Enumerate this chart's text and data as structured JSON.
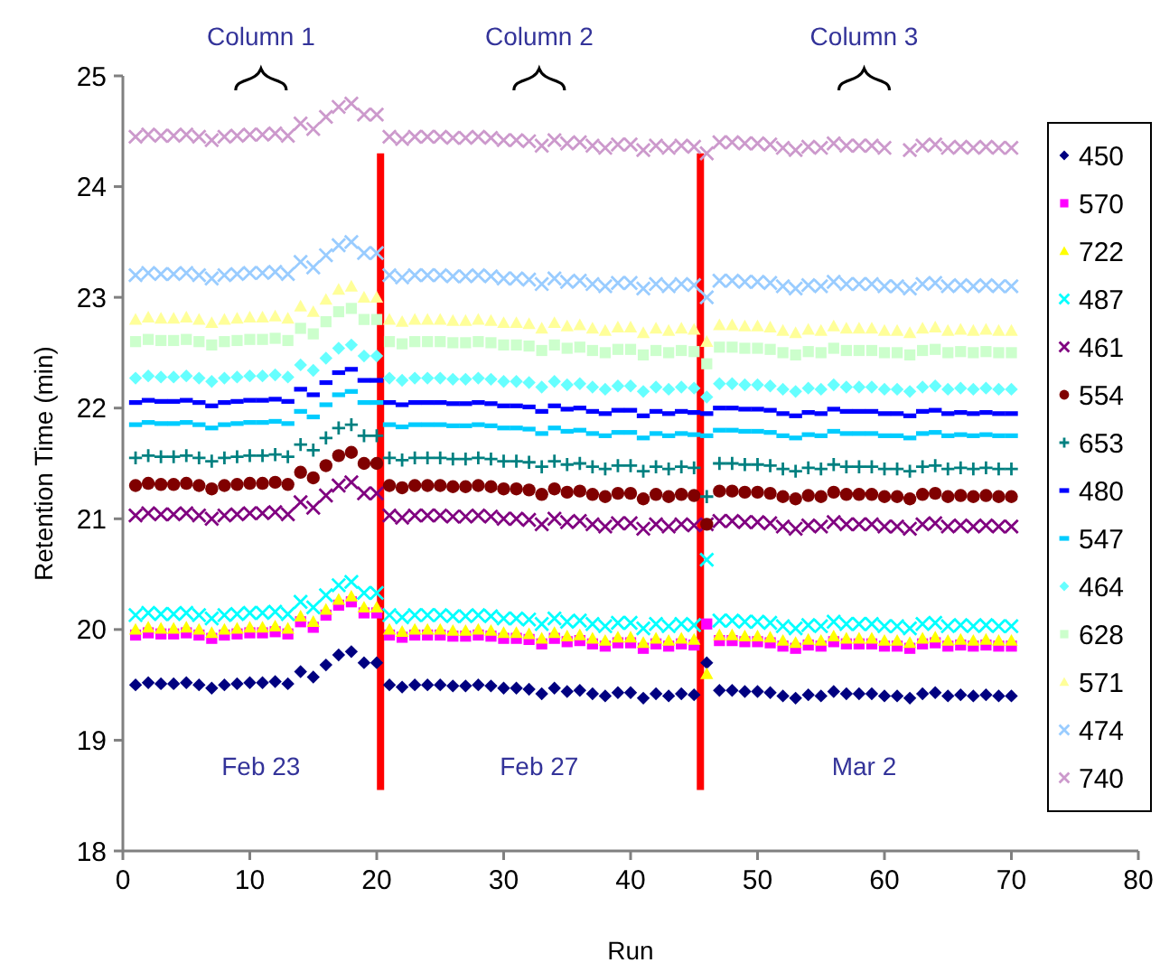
{
  "chart_data": {
    "type": "scatter",
    "xlabel": "Run",
    "ylabel": "Retention Time (min)",
    "x": [
      1,
      2,
      3,
      4,
      5,
      6,
      7,
      8,
      9,
      10,
      11,
      12,
      13,
      14,
      15,
      16,
      17,
      18,
      19,
      20,
      21,
      22,
      23,
      24,
      25,
      26,
      27,
      28,
      29,
      30,
      31,
      32,
      33,
      34,
      35,
      36,
      37,
      38,
      39,
      40,
      41,
      42,
      43,
      44,
      45,
      46,
      47,
      48,
      49,
      50,
      51,
      52,
      53,
      54,
      55,
      56,
      57,
      58,
      59,
      60,
      61,
      62,
      63,
      64,
      65,
      66,
      67,
      68,
      69,
      70
    ],
    "xlim": [
      0,
      80
    ],
    "xticks": [
      0,
      10,
      20,
      30,
      40,
      50,
      60,
      70,
      80
    ],
    "ylim": [
      18,
      25
    ],
    "yticks": [
      18,
      19,
      20,
      21,
      22,
      23,
      24,
      25
    ],
    "grid": false,
    "legend": "right",
    "ref_lines": [
      {
        "axis": "x",
        "value": 20.3,
        "color": "#ff0000"
      },
      {
        "axis": "x",
        "value": 45.5,
        "color": "#ff0000"
      }
    ],
    "annotations": [
      "Column 1",
      "Column 2",
      "Column 3",
      "Feb 23",
      "Feb 27",
      "Mar 2"
    ],
    "series": [
      {
        "name": "450",
        "color": "#000080",
        "marker": "diamond",
        "values": [
          19.5,
          19.52,
          19.51,
          19.51,
          19.52,
          19.5,
          19.47,
          19.5,
          19.51,
          19.52,
          19.52,
          19.53,
          19.51,
          19.62,
          19.57,
          19.68,
          19.77,
          19.8,
          19.7,
          19.7,
          19.5,
          19.48,
          19.5,
          19.5,
          19.5,
          19.49,
          19.49,
          19.5,
          19.49,
          19.47,
          19.47,
          19.46,
          19.42,
          19.47,
          19.44,
          19.45,
          19.42,
          19.4,
          19.43,
          19.43,
          19.38,
          19.42,
          19.4,
          19.42,
          19.41,
          19.7,
          19.45,
          19.45,
          19.44,
          19.44,
          19.43,
          19.4,
          19.38,
          19.41,
          19.4,
          19.44,
          19.42,
          19.42,
          19.42,
          19.4,
          19.4,
          19.38,
          19.42,
          19.43,
          19.4,
          19.41,
          19.4,
          19.41,
          19.4,
          19.4
        ]
      },
      {
        "name": "570",
        "color": "#ff00ff",
        "marker": "square",
        "values": [
          19.95,
          19.97,
          19.96,
          19.96,
          19.97,
          19.95,
          19.92,
          19.95,
          19.96,
          19.97,
          19.97,
          19.98,
          19.96,
          20.07,
          20.02,
          20.13,
          20.22,
          20.25,
          20.15,
          20.15,
          19.95,
          19.93,
          19.95,
          19.95,
          19.95,
          19.94,
          19.94,
          19.95,
          19.94,
          19.92,
          19.92,
          19.91,
          19.87,
          19.92,
          19.89,
          19.9,
          19.87,
          19.85,
          19.88,
          19.88,
          19.83,
          19.87,
          19.85,
          19.87,
          19.86,
          20.05,
          19.9,
          19.9,
          19.89,
          19.89,
          19.88,
          19.85,
          19.83,
          19.86,
          19.85,
          19.89,
          19.87,
          19.87,
          19.87,
          19.85,
          19.85,
          19.83,
          19.87,
          19.88,
          19.85,
          19.86,
          19.85,
          19.86,
          19.85,
          19.85
        ]
      },
      {
        "name": "722",
        "color": "#ffff00",
        "marker": "triangle",
        "values": [
          20,
          20.02,
          20.01,
          20.01,
          20.02,
          20,
          19.97,
          20,
          20.01,
          20.02,
          20.02,
          20.03,
          20.01,
          20.12,
          20.07,
          20.18,
          20.27,
          20.3,
          20.2,
          20.2,
          20,
          19.98,
          20,
          20,
          20,
          19.99,
          19.99,
          20,
          19.99,
          19.97,
          19.97,
          19.96,
          19.92,
          19.97,
          19.94,
          19.95,
          19.92,
          19.9,
          19.93,
          19.93,
          19.88,
          19.92,
          19.9,
          19.92,
          19.91,
          19.6,
          19.95,
          19.95,
          19.94,
          19.94,
          19.93,
          19.9,
          19.88,
          19.91,
          19.9,
          19.94,
          19.92,
          19.92,
          19.92,
          19.9,
          19.9,
          19.88,
          19.92,
          19.93,
          19.9,
          19.91,
          19.9,
          19.91,
          19.9,
          19.9
        ]
      },
      {
        "name": "487",
        "color": "#00ffff",
        "marker": "cross",
        "values": [
          20.13,
          20.15,
          20.14,
          20.14,
          20.15,
          20.13,
          20.1,
          20.13,
          20.14,
          20.15,
          20.15,
          20.16,
          20.14,
          20.25,
          20.2,
          20.31,
          20.4,
          20.43,
          20.33,
          20.33,
          20.13,
          20.11,
          20.13,
          20.13,
          20.13,
          20.12,
          20.12,
          20.13,
          20.12,
          20.1,
          20.1,
          20.09,
          20.05,
          20.1,
          20.07,
          20.08,
          20.05,
          20.03,
          20.06,
          20.06,
          20.01,
          20.05,
          20.03,
          20.05,
          20.04,
          20.63,
          20.08,
          20.08,
          20.07,
          20.07,
          20.06,
          20.03,
          20.01,
          20.04,
          20.03,
          20.07,
          20.05,
          20.05,
          20.05,
          20.03,
          20.03,
          20.01,
          20.05,
          20.06,
          20.03,
          20.04,
          20.03,
          20.04,
          20.03,
          20.03
        ]
      },
      {
        "name": "461",
        "color": "#800080",
        "marker": "cross",
        "values": [
          21.03,
          21.05,
          21.04,
          21.04,
          21.05,
          21.03,
          21,
          21.03,
          21.04,
          21.05,
          21.05,
          21.06,
          21.04,
          21.15,
          21.1,
          21.21,
          21.3,
          21.33,
          21.23,
          21.23,
          21.03,
          21.01,
          21.03,
          21.03,
          21.03,
          21.02,
          21.02,
          21.03,
          21.02,
          21,
          21,
          20.99,
          20.95,
          21,
          20.97,
          20.98,
          20.95,
          20.93,
          20.96,
          20.96,
          20.91,
          20.95,
          20.93,
          20.95,
          20.94,
          20.95,
          20.98,
          20.98,
          20.97,
          20.97,
          20.96,
          20.93,
          20.91,
          20.94,
          20.93,
          20.97,
          20.95,
          20.95,
          20.95,
          20.93,
          20.93,
          20.91,
          20.95,
          20.96,
          20.93,
          20.94,
          20.93,
          20.94,
          20.93,
          20.93
        ]
      },
      {
        "name": "554",
        "color": "#800000",
        "marker": "circle",
        "values": [
          21.3,
          21.32,
          21.31,
          21.31,
          21.32,
          21.3,
          21.27,
          21.3,
          21.31,
          21.32,
          21.32,
          21.33,
          21.31,
          21.42,
          21.37,
          21.48,
          21.57,
          21.6,
          21.5,
          21.5,
          21.3,
          21.28,
          21.3,
          21.3,
          21.3,
          21.29,
          21.29,
          21.3,
          21.29,
          21.27,
          21.27,
          21.26,
          21.22,
          21.27,
          21.24,
          21.25,
          21.22,
          21.2,
          21.23,
          21.23,
          21.18,
          21.22,
          21.2,
          21.22,
          21.21,
          20.95,
          21.25,
          21.25,
          21.24,
          21.24,
          21.23,
          21.2,
          21.18,
          21.21,
          21.2,
          21.24,
          21.22,
          21.22,
          21.22,
          21.2,
          21.2,
          21.18,
          21.22,
          21.23,
          21.2,
          21.21,
          21.2,
          21.21,
          21.2,
          21.2
        ]
      },
      {
        "name": "653",
        "color": "#008080",
        "marker": "plus",
        "values": [
          21.55,
          21.57,
          21.56,
          21.56,
          21.57,
          21.55,
          21.52,
          21.55,
          21.56,
          21.57,
          21.57,
          21.58,
          21.56,
          21.67,
          21.62,
          21.73,
          21.82,
          21.85,
          21.75,
          21.75,
          21.55,
          21.53,
          21.55,
          21.55,
          21.55,
          21.54,
          21.54,
          21.55,
          21.54,
          21.52,
          21.52,
          21.51,
          21.47,
          21.52,
          21.49,
          21.5,
          21.47,
          21.45,
          21.48,
          21.48,
          21.43,
          21.47,
          21.45,
          21.47,
          21.46,
          21.2,
          21.5,
          21.5,
          21.49,
          21.49,
          21.48,
          21.45,
          21.43,
          21.46,
          21.45,
          21.49,
          21.47,
          21.47,
          21.47,
          21.45,
          21.45,
          21.43,
          21.47,
          21.48,
          21.45,
          21.46,
          21.45,
          21.46,
          21.45,
          21.45
        ]
      },
      {
        "name": "480",
        "color": "#0000ff",
        "values": [
          22.05,
          22.07,
          22.06,
          22.06,
          22.07,
          22.05,
          22.02,
          22.05,
          22.06,
          22.07,
          22.07,
          22.08,
          22.06,
          22.17,
          22.12,
          22.23,
          22.32,
          22.35,
          22.25,
          22.25,
          22.05,
          22.03,
          22.05,
          22.05,
          22.05,
          22.04,
          22.04,
          22.05,
          22.04,
          22.02,
          22.02,
          22.01,
          21.97,
          22.02,
          21.99,
          22,
          21.97,
          21.95,
          21.98,
          21.98,
          21.93,
          21.97,
          21.95,
          21.97,
          21.96,
          21.95,
          22,
          22,
          21.99,
          21.99,
          21.98,
          21.95,
          21.93,
          21.96,
          21.95,
          21.99,
          21.97,
          21.97,
          21.97,
          21.95,
          21.95,
          21.93,
          21.97,
          21.98,
          21.95,
          21.96,
          21.95,
          21.96,
          21.95,
          21.95
        ]
      },
      {
        "name": "547",
        "color": "#00ccff",
        "values": [
          21.85,
          21.87,
          21.86,
          21.86,
          21.87,
          21.85,
          21.82,
          21.85,
          21.86,
          21.87,
          21.87,
          21.88,
          21.86,
          21.97,
          21.92,
          22.03,
          22.12,
          22.15,
          22.05,
          22.05,
          21.85,
          21.83,
          21.85,
          21.85,
          21.85,
          21.84,
          21.84,
          21.85,
          21.84,
          21.82,
          21.82,
          21.81,
          21.77,
          21.82,
          21.79,
          21.8,
          21.77,
          21.75,
          21.78,
          21.78,
          21.73,
          21.77,
          21.75,
          21.77,
          21.76,
          21.75,
          21.8,
          21.8,
          21.79,
          21.79,
          21.78,
          21.75,
          21.73,
          21.76,
          21.75,
          21.79,
          21.77,
          21.77,
          21.77,
          21.75,
          21.75,
          21.73,
          21.77,
          21.78,
          21.75,
          21.76,
          21.75,
          21.76,
          21.75,
          21.75
        ]
      },
      {
        "name": "464",
        "color": "#66ffff",
        "marker": "diamond",
        "values": [
          22.27,
          22.29,
          22.28,
          22.28,
          22.29,
          22.27,
          22.24,
          22.27,
          22.28,
          22.29,
          22.29,
          22.3,
          22.28,
          22.39,
          22.34,
          22.45,
          22.54,
          22.57,
          22.47,
          22.47,
          22.27,
          22.25,
          22.27,
          22.27,
          22.27,
          22.26,
          22.26,
          22.27,
          22.26,
          22.24,
          22.24,
          22.23,
          22.19,
          22.24,
          22.21,
          22.22,
          22.19,
          22.17,
          22.2,
          22.2,
          22.15,
          22.19,
          22.17,
          22.19,
          22.18,
          22.1,
          22.22,
          22.22,
          22.21,
          22.21,
          22.2,
          22.17,
          22.15,
          22.18,
          22.17,
          22.21,
          22.19,
          22.19,
          22.19,
          22.17,
          22.17,
          22.15,
          22.19,
          22.2,
          22.17,
          22.18,
          22.17,
          22.18,
          22.17,
          22.17
        ]
      },
      {
        "name": "628",
        "color": "#ccffcc",
        "marker": "square",
        "values": [
          22.6,
          22.62,
          22.61,
          22.61,
          22.62,
          22.6,
          22.57,
          22.6,
          22.61,
          22.62,
          22.62,
          22.63,
          22.61,
          22.72,
          22.67,
          22.78,
          22.87,
          22.9,
          22.8,
          22.8,
          22.6,
          22.58,
          22.6,
          22.6,
          22.6,
          22.59,
          22.59,
          22.6,
          22.59,
          22.57,
          22.57,
          22.56,
          22.52,
          22.57,
          22.54,
          22.55,
          22.52,
          22.5,
          22.53,
          22.53,
          22.48,
          22.52,
          22.5,
          22.52,
          22.51,
          22.4,
          22.55,
          22.55,
          22.54,
          22.54,
          22.53,
          22.5,
          22.48,
          22.51,
          22.5,
          22.54,
          22.52,
          22.52,
          22.52,
          22.5,
          22.5,
          22.48,
          22.52,
          22.53,
          22.5,
          22.51,
          22.5,
          22.51,
          22.5,
          22.5
        ]
      },
      {
        "name": "571",
        "color": "#ffff99",
        "marker": "triangle",
        "values": [
          22.8,
          22.82,
          22.81,
          22.81,
          22.82,
          22.8,
          22.77,
          22.8,
          22.81,
          22.82,
          22.82,
          22.83,
          22.81,
          22.92,
          22.87,
          22.98,
          23.07,
          23.1,
          23,
          23,
          22.8,
          22.78,
          22.8,
          22.8,
          22.8,
          22.79,
          22.79,
          22.8,
          22.79,
          22.77,
          22.77,
          22.76,
          22.72,
          22.77,
          22.74,
          22.75,
          22.72,
          22.7,
          22.73,
          22.73,
          22.68,
          22.72,
          22.7,
          22.72,
          22.71,
          22.6,
          22.75,
          22.75,
          22.74,
          22.74,
          22.73,
          22.7,
          22.68,
          22.71,
          22.7,
          22.74,
          22.72,
          22.72,
          22.72,
          22.7,
          22.7,
          22.68,
          22.72,
          22.73,
          22.7,
          22.71,
          22.7,
          22.71,
          22.7,
          22.7
        ]
      },
      {
        "name": "474",
        "color": "#99ccff",
        "marker": "cross",
        "values": [
          23.2,
          23.22,
          23.21,
          23.21,
          23.22,
          23.2,
          23.17,
          23.2,
          23.21,
          23.22,
          23.22,
          23.23,
          23.21,
          23.32,
          23.27,
          23.38,
          23.47,
          23.5,
          23.4,
          23.4,
          23.2,
          23.18,
          23.2,
          23.2,
          23.2,
          23.19,
          23.19,
          23.2,
          23.19,
          23.17,
          23.17,
          23.16,
          23.12,
          23.17,
          23.14,
          23.15,
          23.12,
          23.1,
          23.13,
          23.13,
          23.08,
          23.12,
          23.1,
          23.12,
          23.11,
          23,
          23.15,
          23.15,
          23.14,
          23.14,
          23.13,
          23.1,
          23.08,
          23.11,
          23.1,
          23.14,
          23.12,
          23.12,
          23.12,
          23.1,
          23.1,
          23.08,
          23.12,
          23.13,
          23.1,
          23.11,
          23.1,
          23.11,
          23.1,
          23.1
        ]
      },
      {
        "name": "740",
        "color": "#cc99cc",
        "marker": "cross",
        "values": [
          24.45,
          24.47,
          24.46,
          24.46,
          24.47,
          24.45,
          24.42,
          24.45,
          24.46,
          24.47,
          24.47,
          24.48,
          24.46,
          24.57,
          24.52,
          24.63,
          24.72,
          24.75,
          24.65,
          24.65,
          24.45,
          24.43,
          24.45,
          24.45,
          24.45,
          24.44,
          24.44,
          24.45,
          24.44,
          24.42,
          24.42,
          24.41,
          24.37,
          24.42,
          24.39,
          24.4,
          24.37,
          24.35,
          24.38,
          24.38,
          24.33,
          24.37,
          24.35,
          24.37,
          24.36,
          24.3,
          24.4,
          24.4,
          24.39,
          24.39,
          24.38,
          24.35,
          24.33,
          24.36,
          24.35,
          24.39,
          24.37,
          24.37,
          24.37,
          24.35,
          null,
          24.33,
          24.37,
          24.38,
          24.35,
          24.36,
          24.35,
          24.36,
          24.35,
          24.35
        ]
      }
    ]
  }
}
